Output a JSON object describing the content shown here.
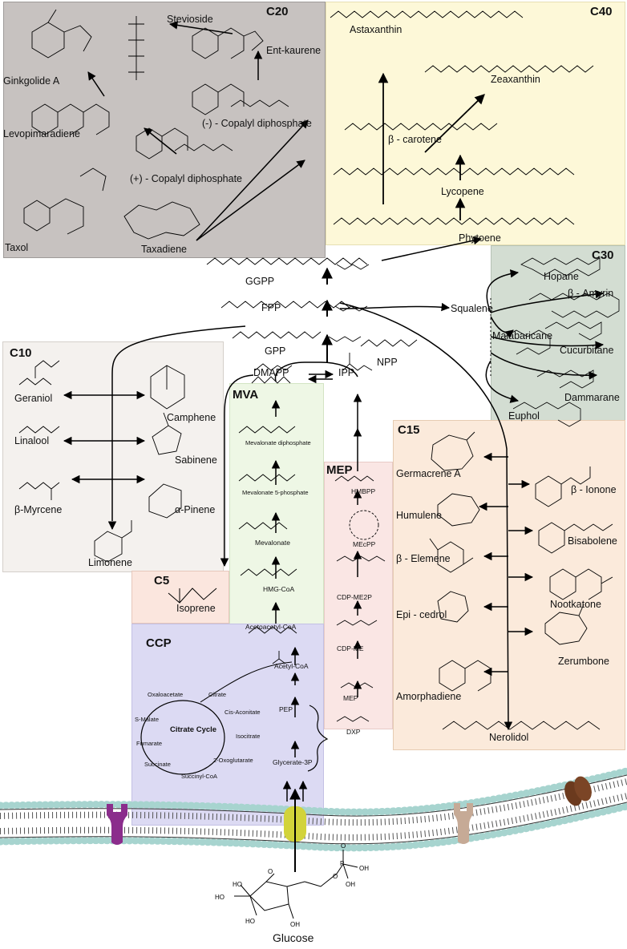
{
  "sections": {
    "c20": "C20",
    "c40": "C40",
    "c30": "C30",
    "c10": "C10",
    "mva": "MVA",
    "mep": "MEP",
    "c15": "C15",
    "c5": "C5",
    "ccp": "CCP"
  },
  "colors": {
    "c20_bg": "#c7c2c0",
    "c40_bg": "#fdf8d8",
    "c30_bg": "#d3ddd2",
    "c10_bg": "#f4f1ee",
    "mva_bg": "#eef7e5",
    "mep_bg": "#fae6e4",
    "c15_bg": "#fbeadb",
    "c5_bg": "#fbe6de",
    "ccp_bg": "#dcdaf3",
    "membrane_head": "#a7d4cf",
    "protein_purple": "#8b2d8c",
    "protein_yellow": "#d2d33a",
    "protein_tan": "#c6aa96",
    "protein_brown": "#6b3a1e"
  },
  "c20": {
    "stevioside": "Stevioside",
    "ent_kaurene": "Ent-kaurene",
    "ginkgolide": "Ginkgolide A",
    "levopimaradiene": "Levopimaradiene",
    "copalyl_minus": "(-) - Copalyl diphosphate",
    "copalyl_plus": "(+) - Copalyl diphosphate",
    "taxol": "Taxol",
    "taxadiene": "Taxadiene"
  },
  "c40": {
    "astaxanthin": "Astaxanthin",
    "zeaxanthin": "Zeaxanthin",
    "beta_carotene": "β - carotene",
    "lycopene": "Lycopene",
    "phytoene": "Phytoene"
  },
  "core": {
    "ggpp": "GGPP",
    "fpp": "FPP",
    "gpp": "GPP",
    "npp": "NPP",
    "dmapp": "DMAPP",
    "ipp": "IPP",
    "squalene": "Squalene"
  },
  "c30": {
    "hopane": "Hopane",
    "amyrin": "β - Amyrin",
    "malabaricane": "Malabaricane",
    "cucurbitane": "Cucurbitane",
    "dammarane": "Dammarane",
    "euphol": "Euphol"
  },
  "c10": {
    "geraniol": "Geraniol",
    "camphene": "Camphene",
    "linalool": "Linalool",
    "sabinene": "Sabinene",
    "myrcene": "β-Myrcene",
    "pinene": "α-Pinene",
    "limonene": "Limonene"
  },
  "mva": {
    "mev_diphosphate": "Mevalonate diphosphate",
    "mev_5_phosphate": "Mevalonate 5-phosphate",
    "mevalonate": "Mevalonate",
    "hmg_coa": "HMG-CoA",
    "acetoacetyl_coa": "Acetoacetyl-CoA"
  },
  "mep": {
    "hmbpp": "HMBPP",
    "mecpp": "MEcPP",
    "cdp_me2p": "CDP-ME2P",
    "cdp_me": "CDP-ME",
    "mep": "MEP",
    "dxp": "DXP"
  },
  "c15": {
    "germacrene": "Germacrene A",
    "ionone": "β - Ionone",
    "humulene": "Humulene",
    "bisabolene": "Bisabolene",
    "elemene": "β - Elemene",
    "nootkatone": "Nootkatone",
    "cedrol": "Epi - cedrol",
    "zerumbone": "Zerumbone",
    "amorphadiene": "Amorphadiene",
    "nerolidol": "Nerolidol"
  },
  "c5": {
    "isoprene": "Isoprene"
  },
  "ccp": {
    "acetyl_coa": "Acetyl-CoA",
    "pep": "PEP",
    "glycerate": "Glycerate-3P",
    "citrate_cycle": "Citrate Cycle",
    "oxaloacetate": "Oxaloacetate",
    "citrate": "Citrate",
    "malate": "S-Malate",
    "cis_aconitate": "Cis-Aconitate",
    "isocitrate": "Isocitrate",
    "fumarate": "Fumarate",
    "oxoglutarate": "2-Oxoglutarate",
    "succinate": "Succinate",
    "succinyl_coa": "Succinyl-CoA"
  },
  "glucose": "Glucose"
}
